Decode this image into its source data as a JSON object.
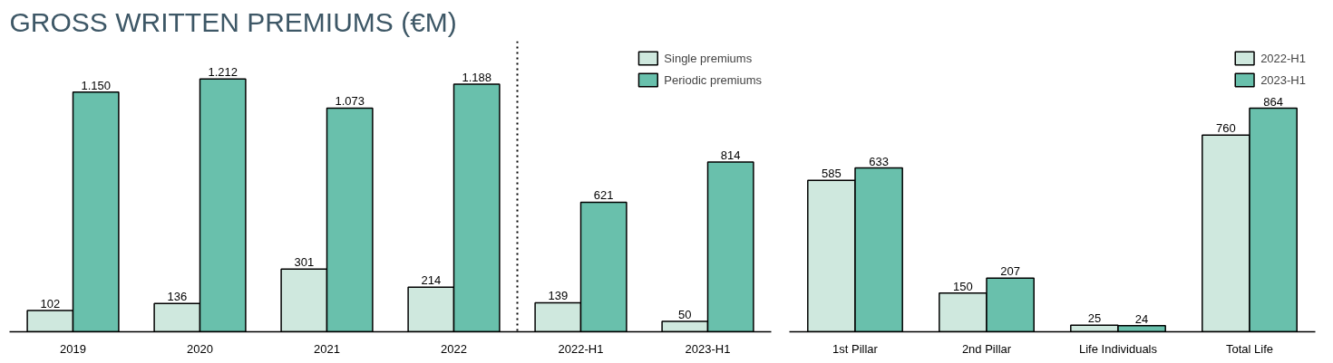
{
  "chart_data": [
    {
      "type": "bar",
      "title": "GROSS WRITTEN PREMIUMS (€M)",
      "categories": [
        "2019",
        "2020",
        "2021",
        "2022",
        "2022-H1",
        "2023-H1"
      ],
      "tick_labels": "x",
      "legend": "right",
      "grid": false,
      "series": [
        {
          "name": "Single premiums",
          "color": "#cfe8de",
          "values": [
            102,
            136,
            301,
            214,
            139,
            50
          ],
          "value_labels": [
            "102",
            "136",
            "301",
            "214",
            "139",
            "50"
          ]
        },
        {
          "name": "Periodic premiums",
          "color": "#69c0ac",
          "values": [
            1150,
            1212,
            1073,
            1188,
            621,
            814
          ],
          "value_labels": [
            "1.150",
            "1.212",
            "1.073",
            "1.188",
            "621",
            "814"
          ]
        }
      ]
    },
    {
      "type": "bar",
      "categories": [
        "1st Pillar",
        "2nd Pillar",
        "Life Individuals",
        "Total Life"
      ],
      "tick_labels": "x",
      "legend": "top right",
      "grid": false,
      "data_labels": true,
      "series": [
        {
          "name": "2022-H1",
          "color": "#cfe8de",
          "values": [
            585,
            150,
            25,
            760
          ]
        },
        {
          "name": "2023-H1",
          "color": "#69c0ac",
          "values": [
            633,
            207,
            24,
            864
          ]
        }
      ]
    }
  ]
}
